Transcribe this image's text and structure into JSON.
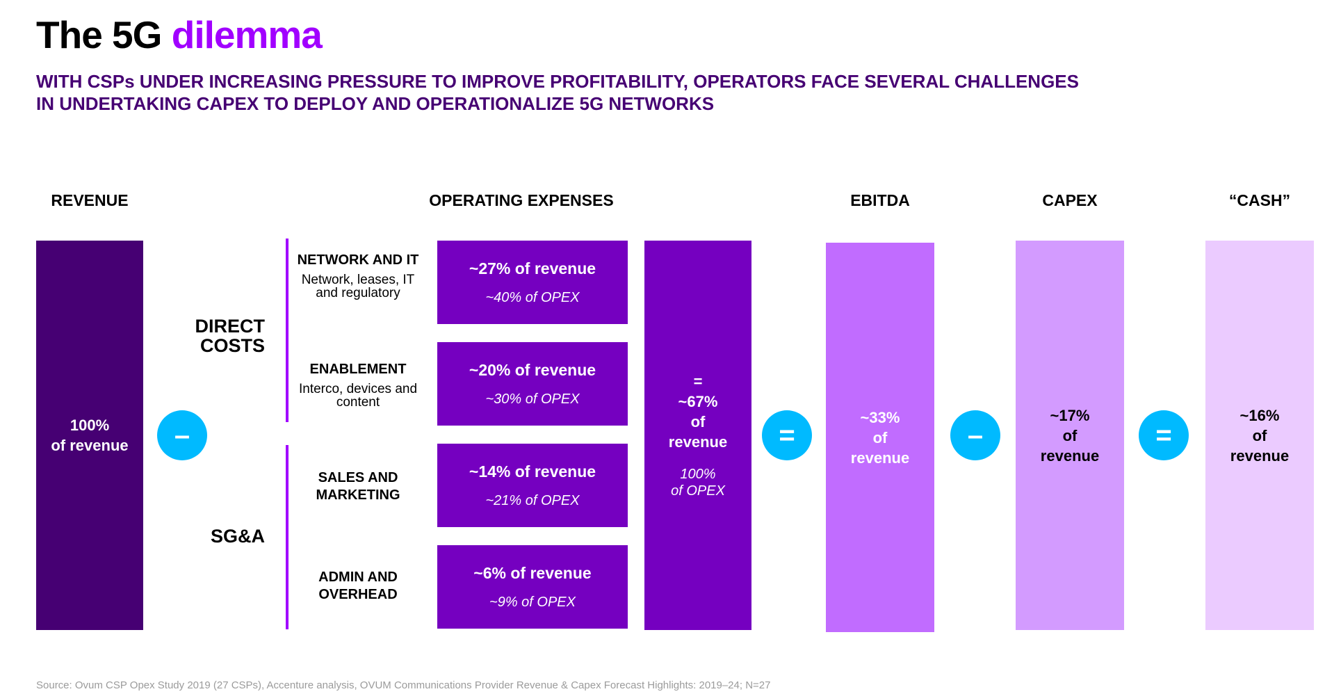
{
  "title": {
    "main": "The 5G",
    "highlight": "dilemma"
  },
  "subtitle": {
    "line1": "WITH CSPs UNDER INCREASING PRESSURE TO IMPROVE PROFITABILITY, OPERATORS FACE SEVERAL CHALLENGES",
    "line2": "IN UNDERTAKING CAPEX TO DEPLOY AND OPERATIONALIZE 5G NETWORKS"
  },
  "headers": {
    "revenue": "REVENUE",
    "opex": "OPERATING EXPENSES",
    "ebitda": "EBITDA",
    "capex": "CAPEX",
    "cash": "“CASH”"
  },
  "revenue": {
    "line1": "100%",
    "line2": "of revenue"
  },
  "operators": {
    "minus": "–",
    "equals": "="
  },
  "groups": {
    "direct": "DIRECT COSTS",
    "sga": "SG&A"
  },
  "categories": [
    {
      "name": "NETWORK AND IT",
      "desc": "Network, leases, IT and regulatory",
      "revenue": "~27% of revenue",
      "opex": "~40% of OPEX"
    },
    {
      "name": "ENABLEMENT",
      "desc": "Interco, devices and content",
      "revenue": "~20% of revenue",
      "opex": "~30% of OPEX"
    },
    {
      "name": "SALES AND MARKETING",
      "desc": "",
      "revenue": "~14% of revenue",
      "opex": "~21% of OPEX"
    },
    {
      "name": "ADMIN AND OVERHEAD",
      "desc": "",
      "revenue": "~6% of revenue",
      "opex": "~9% of OPEX"
    }
  ],
  "opex_total": {
    "eq": "=",
    "pct": "~67%",
    "of": "of",
    "revenue": "revenue",
    "opex_pct": "100%",
    "opex_label": "of OPEX"
  },
  "ebitda": {
    "pct": "~33%",
    "of": "of",
    "revenue": "revenue"
  },
  "capex": {
    "pct": "~17%",
    "of": "of",
    "revenue": "revenue"
  },
  "cash": {
    "pct": "~16%",
    "of": "of",
    "revenue": "revenue"
  },
  "colors": {
    "revenue": "#460073",
    "opex": "#7500c0",
    "ebitda": "#c16cff",
    "capex": "#d39bff",
    "cash": "#ebcbff",
    "accent": "#a100ff",
    "operator": "#00baff",
    "subtitle": "#460073"
  },
  "source": "Source: Ovum CSP Opex Study 2019 (27 CSPs), Accenture analysis, OVUM Communications Provider Revenue & Capex Forecast Highlights: 2019–24; N=27"
}
